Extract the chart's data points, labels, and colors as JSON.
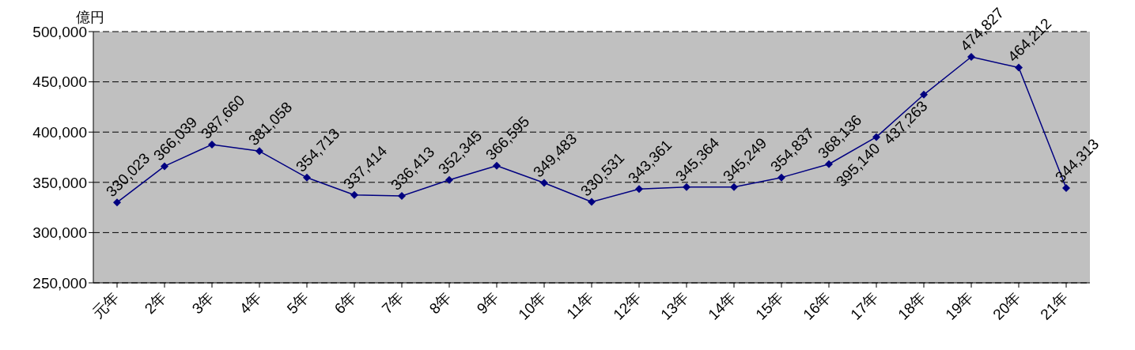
{
  "chart_data": {
    "type": "line",
    "ylabel": "億円",
    "categories": [
      "元年",
      "2年",
      "3年",
      "4年",
      "5年",
      "6年",
      "7年",
      "8年",
      "9年",
      "10年",
      "11年",
      "12年",
      "13年",
      "14年",
      "15年",
      "16年",
      "17年",
      "18年",
      "19年",
      "20年",
      "21年"
    ],
    "series": [
      {
        "color": "#000080",
        "values": [
          330023,
          366039,
          387660,
          381058,
          354713,
          337414,
          336413,
          352345,
          366595,
          349483,
          330531,
          343361,
          345364,
          345249,
          354837,
          368136,
          395140,
          437263,
          474827,
          464212,
          344313
        ]
      }
    ],
    "value_labels": [
      "330,023",
      "366,039",
      "387,660",
      "381,058",
      "354,713",
      "337,414",
      "336,413",
      "352,345",
      "366,595",
      "349,483",
      "330,531",
      "343,361",
      "345,364",
      "345,249",
      "354,837",
      "368,136",
      "395,140",
      "437,263",
      "474,827",
      "464,212",
      "344,313"
    ],
    "ylim": [
      250000,
      500000
    ],
    "yticks": [
      {
        "value": 250000,
        "label": "250,000"
      },
      {
        "value": 300000,
        "label": "300,000"
      },
      {
        "value": 350000,
        "label": "350,000"
      },
      {
        "value": 400000,
        "label": "400,000"
      },
      {
        "value": 450000,
        "label": "450,000"
      },
      {
        "value": 500000,
        "label": "500,000"
      }
    ],
    "grid": "y",
    "line_style": "solid",
    "marker": "diamond",
    "legend": false
  }
}
